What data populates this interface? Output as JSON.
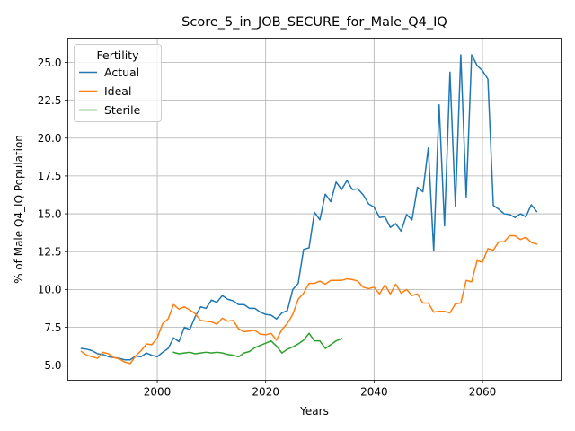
{
  "chart_data": {
    "type": "line",
    "title": "Score_5_in_JOB_SECURE_for_Male_Q4_IQ",
    "xlabel": "Years",
    "ylabel": "% of Male Q4_IQ Population",
    "xlim": [
      1983.5,
      2074.5
    ],
    "ylim": [
      4.0,
      26.6
    ],
    "xticks": [
      2000,
      2020,
      2040,
      2060
    ],
    "yticks": [
      5.0,
      7.5,
      10.0,
      12.5,
      15.0,
      17.5,
      20.0,
      22.5,
      25.0
    ],
    "grid": true,
    "legend": {
      "title": "Fertility",
      "position": "top-left"
    },
    "series": [
      {
        "name": "Actual",
        "color": "#1f77b4",
        "x": [
          1986,
          1987,
          1988,
          1989,
          1990,
          1991,
          1992,
          1993,
          1994,
          1995,
          1996,
          1997,
          1998,
          1999,
          2000,
          2001,
          2002,
          2003,
          2004,
          2005,
          2006,
          2007,
          2008,
          2009,
          2010,
          2011,
          2012,
          2013,
          2014,
          2015,
          2016,
          2017,
          2018,
          2019,
          2020,
          2021,
          2022,
          2023,
          2024,
          2025,
          2026,
          2027,
          2028,
          2029,
          2030,
          2031,
          2032,
          2033,
          2034,
          2035,
          2036,
          2037,
          2038,
          2039,
          2040,
          2041,
          2042,
          2043,
          2044,
          2045,
          2046,
          2047,
          2048,
          2049,
          2050,
          2051,
          2052,
          2053,
          2054,
          2055,
          2056,
          2057,
          2058,
          2059,
          2060,
          2061,
          2062,
          2063,
          2064,
          2065,
          2066,
          2067,
          2068,
          2069,
          2070
        ],
        "values": [
          6.1,
          6.05,
          5.95,
          5.75,
          5.7,
          5.55,
          5.5,
          5.45,
          5.35,
          5.35,
          5.6,
          5.55,
          5.8,
          5.65,
          5.55,
          5.85,
          6.1,
          6.8,
          6.55,
          7.5,
          7.35,
          8.2,
          8.85,
          8.75,
          9.3,
          9.15,
          9.6,
          9.35,
          9.25,
          9.0,
          9.0,
          8.75,
          8.75,
          8.5,
          8.35,
          8.3,
          8.05,
          8.45,
          8.6,
          10.0,
          10.4,
          12.65,
          12.75,
          15.1,
          14.6,
          16.3,
          15.8,
          17.1,
          16.6,
          17.2,
          16.6,
          16.65,
          16.25,
          15.65,
          15.45,
          14.75,
          14.8,
          14.1,
          14.35,
          13.85,
          14.95,
          14.6,
          16.75,
          16.45,
          19.35,
          12.55,
          22.2,
          14.2,
          24.35,
          15.5,
          25.5,
          16.1,
          25.5,
          24.8,
          24.45,
          23.9,
          15.55,
          15.3,
          15.0,
          14.95,
          14.75,
          15.0,
          14.8,
          15.6,
          15.15
        ]
      },
      {
        "name": "Ideal",
        "color": "#ff7f0e",
        "x": [
          1986,
          1987,
          1988,
          1989,
          1990,
          1991,
          1992,
          1993,
          1994,
          1995,
          1996,
          1997,
          1998,
          1999,
          2000,
          2001,
          2002,
          2003,
          2004,
          2005,
          2006,
          2007,
          2008,
          2009,
          2010,
          2011,
          2012,
          2013,
          2014,
          2015,
          2016,
          2017,
          2018,
          2019,
          2020,
          2021,
          2022,
          2023,
          2024,
          2025,
          2026,
          2027,
          2028,
          2029,
          2030,
          2031,
          2032,
          2033,
          2034,
          2035,
          2036,
          2037,
          2038,
          2039,
          2040,
          2041,
          2042,
          2043,
          2044,
          2045,
          2046,
          2047,
          2048,
          2049,
          2050,
          2051,
          2052,
          2053,
          2054,
          2055,
          2056,
          2057,
          2058,
          2059,
          2060,
          2061,
          2062,
          2063,
          2064,
          2065,
          2066,
          2067,
          2068,
          2069,
          2070
        ],
        "values": [
          5.9,
          5.65,
          5.55,
          5.45,
          5.85,
          5.75,
          5.5,
          5.4,
          5.2,
          5.1,
          5.6,
          5.95,
          6.4,
          6.35,
          6.8,
          7.75,
          8.05,
          9.0,
          8.7,
          8.85,
          8.65,
          8.4,
          7.95,
          7.9,
          7.85,
          7.7,
          8.1,
          7.9,
          7.95,
          7.4,
          7.2,
          7.25,
          7.3,
          7.05,
          7.0,
          7.1,
          6.65,
          7.35,
          7.75,
          8.35,
          9.35,
          9.75,
          10.4,
          10.4,
          10.55,
          10.35,
          10.6,
          10.6,
          10.6,
          10.7,
          10.65,
          10.55,
          10.15,
          10.05,
          10.15,
          9.7,
          10.3,
          9.7,
          10.35,
          9.75,
          10.0,
          9.6,
          9.7,
          9.1,
          9.1,
          8.5,
          8.55,
          8.55,
          8.45,
          9.05,
          9.1,
          10.6,
          10.5,
          11.9,
          11.8,
          12.7,
          12.6,
          13.15,
          13.15,
          13.55,
          13.55,
          13.3,
          13.45,
          13.1,
          13.0
        ]
      },
      {
        "name": "Sterile",
        "color": "#2ca02c",
        "x": [
          2003,
          2004,
          2005,
          2006,
          2007,
          2008,
          2009,
          2010,
          2011,
          2012,
          2013,
          2014,
          2015,
          2016,
          2017,
          2018,
          2019,
          2020,
          2021,
          2022,
          2023,
          2024,
          2025,
          2026,
          2027,
          2028,
          2029,
          2030,
          2031,
          2032,
          2033,
          2034
        ],
        "values": [
          5.85,
          5.75,
          5.8,
          5.85,
          5.75,
          5.8,
          5.85,
          5.8,
          5.85,
          5.8,
          5.7,
          5.65,
          5.55,
          5.8,
          5.9,
          6.15,
          6.3,
          6.45,
          6.6,
          6.25,
          5.8,
          6.05,
          6.2,
          6.4,
          6.65,
          7.1,
          6.6,
          6.6,
          6.1,
          6.35,
          6.6,
          6.75
        ]
      }
    ]
  }
}
